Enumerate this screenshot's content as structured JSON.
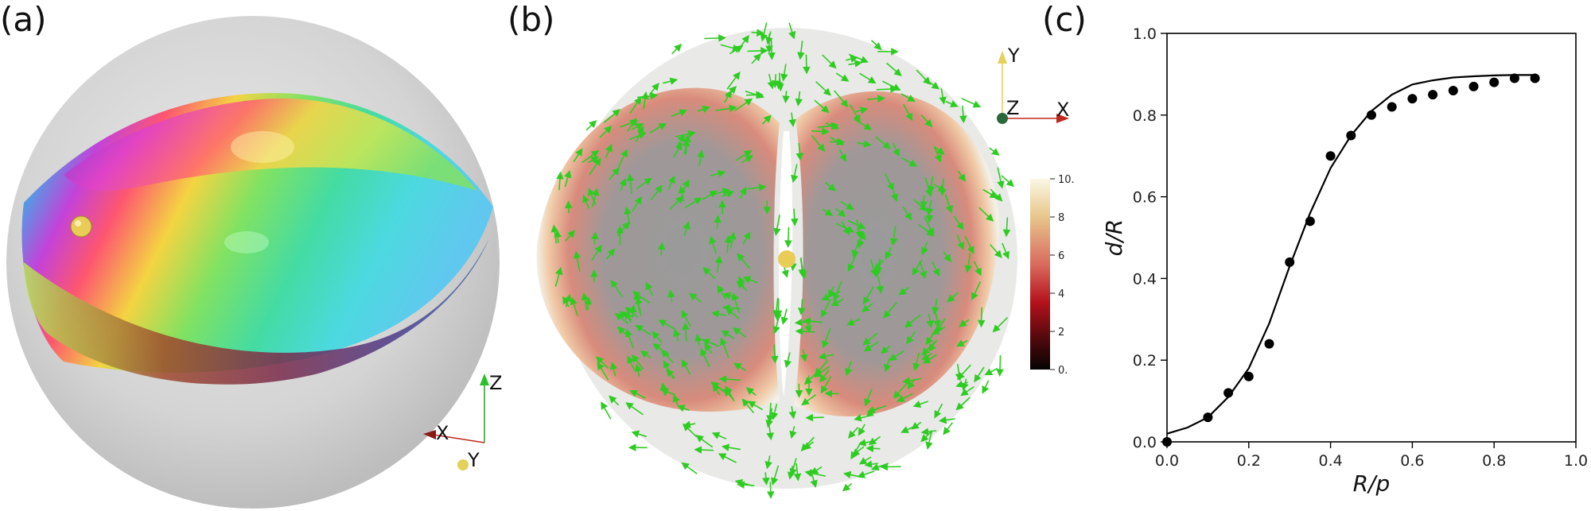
{
  "panels": {
    "a": {
      "label": "(a)"
    },
    "b": {
      "label": "(b)"
    },
    "c": {
      "label": "(c)"
    }
  },
  "axes_a": {
    "z": "Z",
    "x": "X",
    "y": "Y"
  },
  "axes_b": {
    "y": "Y",
    "z": "Z",
    "x": "X"
  },
  "colorbar": {
    "ticks": [
      "10.",
      "8",
      "6",
      "4",
      "2",
      "0."
    ],
    "colors": [
      "#fbf7e4",
      "#e7c68b",
      "#d96a5e",
      "#b3111b",
      "#5a0a0e",
      "#050303"
    ]
  },
  "colors": {
    "arrows": "#2ecc22",
    "axis_x": "#c0281e",
    "axis_y": "#e2d15a",
    "axis_z": "#2a8a2a"
  },
  "chart_data": {
    "type": "scatter",
    "xlabel": "R/p",
    "ylabel": "d/R",
    "xlim": [
      0.0,
      1.0
    ],
    "ylim": [
      0.0,
      1.0
    ],
    "xticks": [
      "0.0",
      "0.2",
      "0.4",
      "0.6",
      "0.8",
      "1.0"
    ],
    "yticks": [
      "0.0",
      "0.2",
      "0.4",
      "0.6",
      "0.8",
      "1.0"
    ],
    "grid": false,
    "points": {
      "x": [
        0.0,
        0.1,
        0.15,
        0.2,
        0.25,
        0.3,
        0.35,
        0.4,
        0.45,
        0.5,
        0.55,
        0.6,
        0.65,
        0.7,
        0.75,
        0.8,
        0.85,
        0.9
      ],
      "y": [
        0.0,
        0.06,
        0.12,
        0.16,
        0.24,
        0.44,
        0.54,
        0.7,
        0.75,
        0.8,
        0.82,
        0.84,
        0.85,
        0.86,
        0.87,
        0.88,
        0.89,
        0.89
      ]
    },
    "curve": {
      "x": [
        0.0,
        0.05,
        0.1,
        0.15,
        0.2,
        0.25,
        0.3,
        0.35,
        0.4,
        0.45,
        0.5,
        0.55,
        0.6,
        0.65,
        0.7,
        0.75,
        0.8,
        0.85,
        0.9
      ],
      "y": [
        0.02,
        0.035,
        0.06,
        0.11,
        0.18,
        0.29,
        0.43,
        0.56,
        0.67,
        0.75,
        0.81,
        0.85,
        0.875,
        0.885,
        0.892,
        0.895,
        0.897,
        0.898,
        0.898
      ]
    }
  }
}
